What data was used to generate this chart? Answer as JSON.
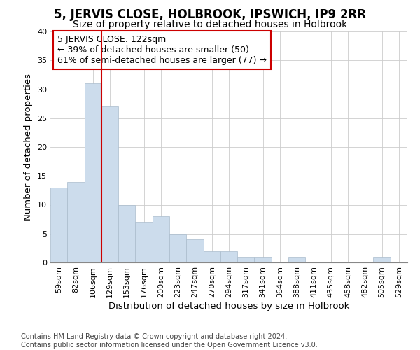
{
  "title": "5, JERVIS CLOSE, HOLBROOK, IPSWICH, IP9 2RR",
  "subtitle": "Size of property relative to detached houses in Holbrook",
  "xlabel": "Distribution of detached houses by size in Holbrook",
  "ylabel": "Number of detached properties",
  "categories": [
    "59sqm",
    "82sqm",
    "106sqm",
    "129sqm",
    "153sqm",
    "176sqm",
    "200sqm",
    "223sqm",
    "247sqm",
    "270sqm",
    "294sqm",
    "317sqm",
    "341sqm",
    "364sqm",
    "388sqm",
    "411sqm",
    "435sqm",
    "458sqm",
    "482sqm",
    "505sqm",
    "529sqm"
  ],
  "values": [
    13,
    14,
    31,
    27,
    10,
    7,
    8,
    5,
    4,
    2,
    2,
    1,
    1,
    0,
    1,
    0,
    0,
    0,
    0,
    1,
    0
  ],
  "bar_color": "#ccdcec",
  "bar_edge_color": "#aabccc",
  "vline_color": "#cc0000",
  "vline_x": 2.5,
  "ylim": [
    0,
    40
  ],
  "yticks": [
    0,
    5,
    10,
    15,
    20,
    25,
    30,
    35,
    40
  ],
  "annotation_title": "5 JERVIS CLOSE: 122sqm",
  "annotation_line1": "← 39% of detached houses are smaller (50)",
  "annotation_line2": "61% of semi-detached houses are larger (77) →",
  "annotation_box_color": "#ffffff",
  "annotation_box_edge": "#cc0000",
  "footer_line1": "Contains HM Land Registry data © Crown copyright and database right 2024.",
  "footer_line2": "Contains public sector information licensed under the Open Government Licence v3.0.",
  "background_color": "#ffffff",
  "grid_color": "#cccccc",
  "title_fontsize": 12,
  "subtitle_fontsize": 10,
  "axis_label_fontsize": 9.5,
  "tick_fontsize": 8,
  "annotation_fontsize": 9,
  "footer_fontsize": 7
}
